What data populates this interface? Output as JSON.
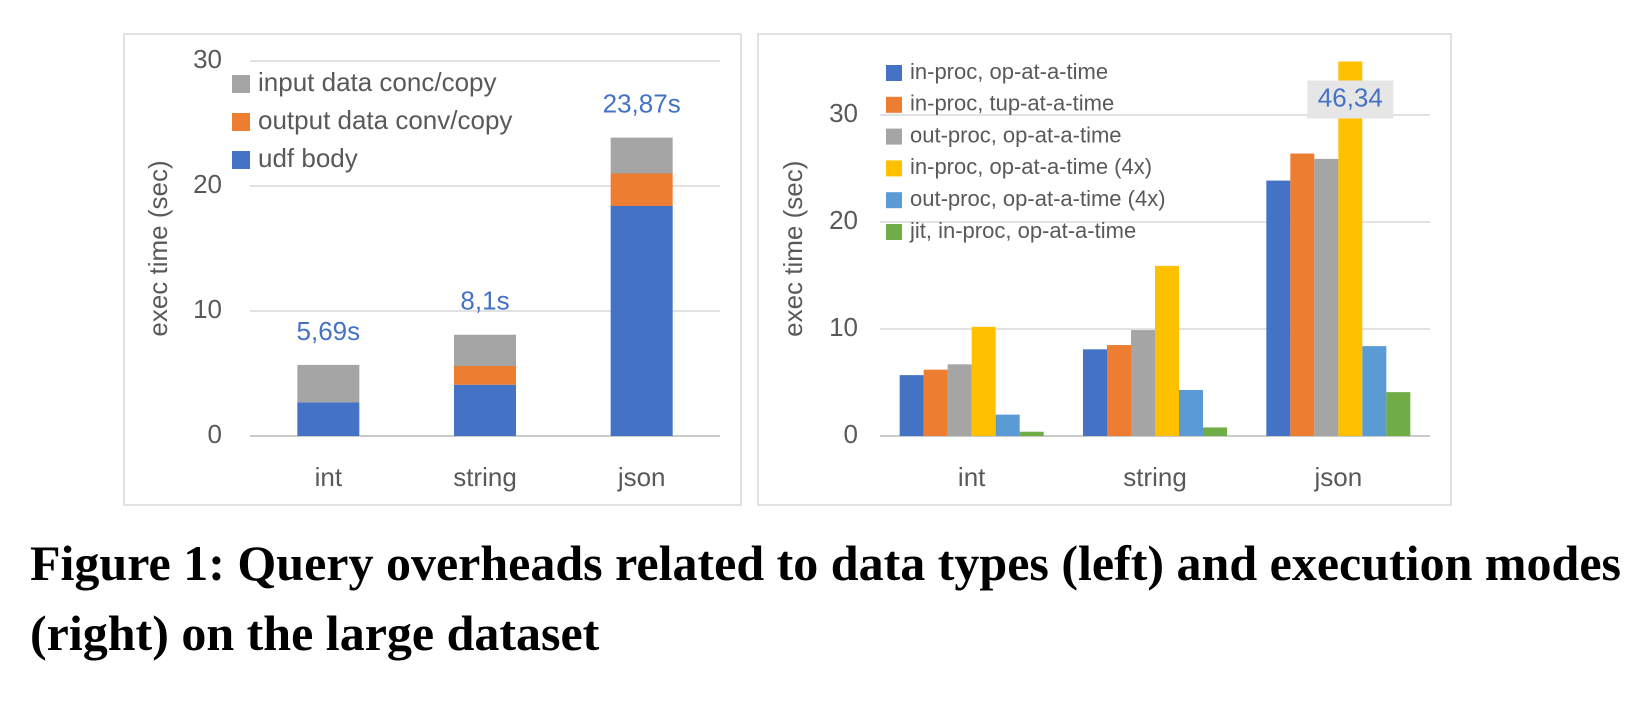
{
  "chart_data": [
    {
      "type": "bar",
      "stacked": true,
      "categories": [
        "int",
        "string",
        "json"
      ],
      "series": [
        {
          "name": "udf body",
          "color": "#4472c4",
          "values": [
            2.7,
            4.1,
            18.4
          ]
        },
        {
          "name": "output data conv/copy",
          "color": "#ed7d31",
          "values": [
            0,
            1.5,
            2.6
          ]
        },
        {
          "name": "input data conc/copy",
          "color": "#a5a5a5",
          "values": [
            2.99,
            2.5,
            2.87
          ]
        }
      ],
      "totals": {
        "values": [
          5.69,
          8.1,
          23.87
        ],
        "value_labels": [
          "5,69s",
          "8,1s",
          "23,87s"
        ],
        "color": "#4472c4"
      },
      "ylabel": "exec time (sec)",
      "ylim": [
        0,
        30
      ],
      "yticks": [
        0,
        10,
        20,
        30
      ],
      "grid": true,
      "legend": "upper left"
    },
    {
      "type": "bar",
      "stacked": false,
      "categories": [
        "int",
        "string",
        "json"
      ],
      "series": [
        {
          "name": "in-proc, op-at-a-time",
          "color": "#4472c4",
          "values": [
            5.69,
            8.1,
            23.87
          ]
        },
        {
          "name": "in-proc, tup-at-a-time",
          "color": "#ed7d31",
          "values": [
            6.2,
            8.5,
            26.4
          ]
        },
        {
          "name": "out-proc, op-at-a-time",
          "color": "#a5a5a5",
          "values": [
            6.7,
            9.9,
            25.9
          ]
        },
        {
          "name": "in-proc, op-at-a-time (4x)",
          "color": "#ffc000",
          "values": [
            10.2,
            15.9,
            46.34
          ],
          "value_labels": [
            null,
            null,
            "46,34"
          ]
        },
        {
          "name": "out-proc, op-at-a-time (4x)",
          "color": "#5b9bd5",
          "values": [
            2.0,
            4.3,
            8.4
          ]
        },
        {
          "name": "jit, in-proc, op-at-a-time",
          "color": "#70ad47",
          "values": [
            0.4,
            0.8,
            4.1
          ]
        }
      ],
      "ylabel": "exec time (sec)",
      "ylim": [
        0,
        35
      ],
      "yticks": [
        0,
        10,
        20,
        30
      ],
      "grid": true,
      "legend": "upper left"
    }
  ],
  "caption": "Figure 1: Query overheads related to data types (left) and execution modes (right) on the large dataset"
}
